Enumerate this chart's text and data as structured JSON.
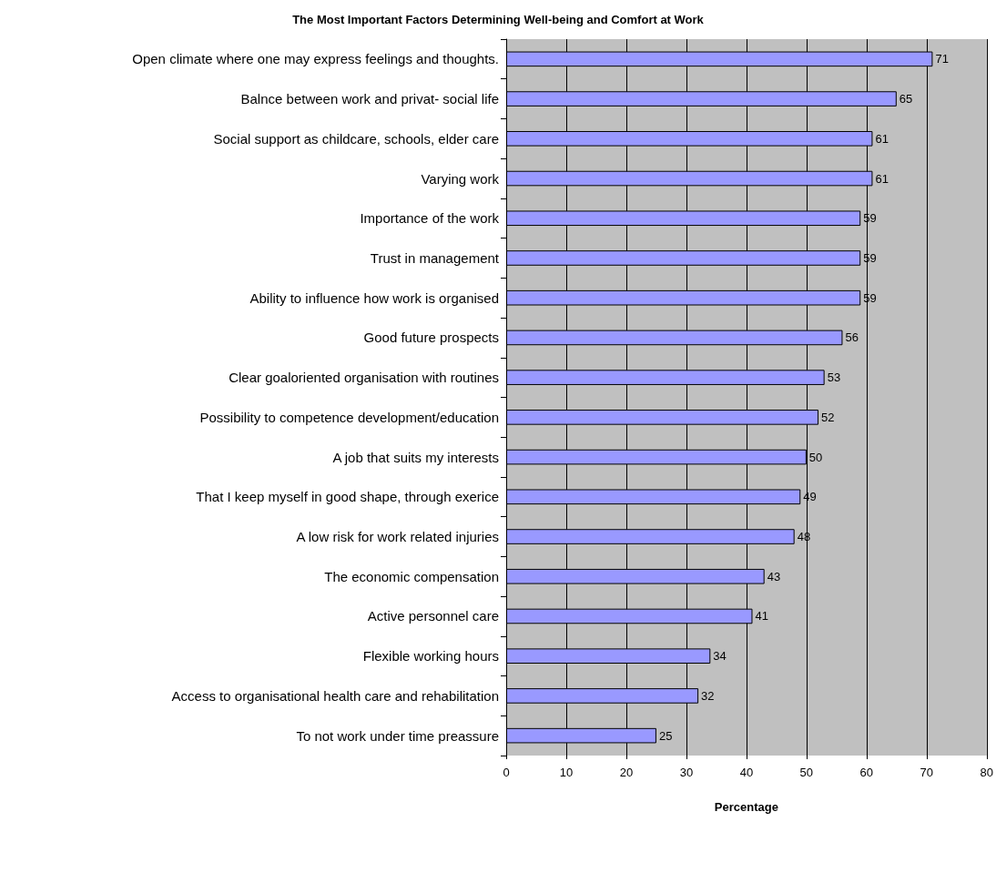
{
  "chart_data": {
    "type": "bar",
    "orientation": "horizontal",
    "title": "The Most Important Factors Determining Well-being and Comfort at Work",
    "xlabel": "Percentage",
    "categories": [
      "Open climate where one may express feelings and thoughts.",
      "Balnce between work and privat- social life",
      "Social support as childcare, schools, elder care",
      "Varying work",
      "Importance of the work",
      "Trust in management",
      "Ability to influence how work is organised",
      "Good future prospects",
      "Clear goaloriented organisation with routines",
      "Possibility to competence development/education",
      "A job that suits my interests",
      "That I keep myself in good shape, through exerice",
      "A low risk for work related injuries",
      "The economic compensation",
      "Active personnel care",
      "Flexible working hours",
      "Access to organisational health care and rehabilitation",
      "To not work under time preassure"
    ],
    "values": [
      71,
      65,
      61,
      61,
      59,
      59,
      59,
      56,
      53,
      52,
      50,
      49,
      48,
      43,
      41,
      34,
      32,
      25
    ],
    "color": "#9999ff",
    "xlim": [
      0,
      80
    ],
    "xticks": [
      0,
      10,
      20,
      30,
      40,
      50,
      60,
      70,
      80
    ],
    "grid": "x",
    "data_labels": true
  }
}
